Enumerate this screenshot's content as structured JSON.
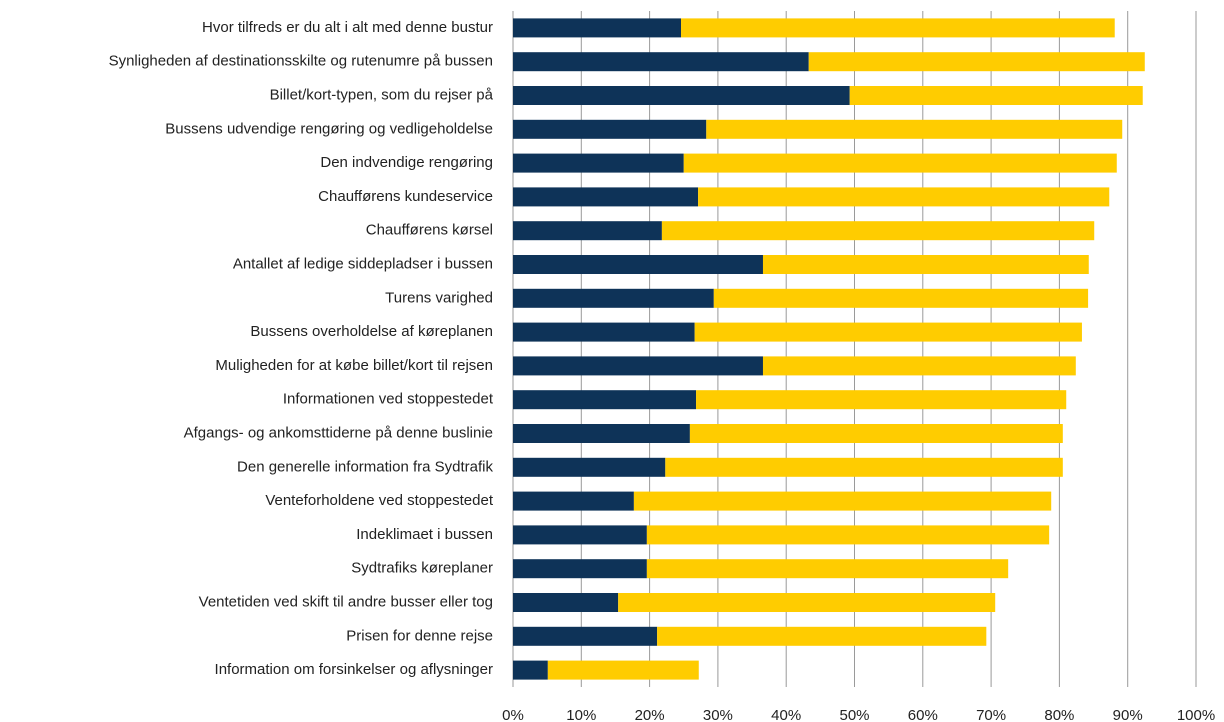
{
  "chart_data": {
    "type": "stacked_barh",
    "categories": [
      "Hvor tilfreds er du alt i alt med denne bustur",
      "Synligheden af destinationsskilte og rutenumre på bussen",
      "Billet/kort-typen, som du rejser på",
      "Bussens udvendige rengøring og vedligeholdelse",
      "Den indvendige rengøring",
      "Chaufførens kundeservice",
      "Chaufførens kørsel",
      "Antallet af ledige siddepladser i bussen",
      "Turens varighed",
      "Bussens overholdelse af køreplanen",
      "Muligheden for at købe billet/kort til rejsen",
      "Informationen ved stoppestedet",
      "Afgangs- og ankomsttiderne på denne buslinie",
      "Den generelle information fra Sydtrafik",
      "Venteforholdene ved stoppestedet",
      "Indeklimaet i bussen",
      "Sydtrafiks køreplaner",
      "Ventetiden ved skift til andre busser eller tog",
      "Prisen for denne rejse",
      "Information om forsinkelser og aflysninger"
    ],
    "series": [
      {
        "color": "#0e3358",
        "values": [
          24.6,
          43.3,
          49.3,
          28.3,
          25.0,
          27.1,
          21.8,
          36.6,
          29.4,
          26.6,
          36.6,
          26.8,
          25.9,
          22.3,
          17.7,
          19.6,
          19.6,
          15.4,
          21.1,
          5.1
        ]
      },
      {
        "color": "#ffcc00",
        "values": [
          63.5,
          49.2,
          42.9,
          60.9,
          63.4,
          60.2,
          63.3,
          47.7,
          54.8,
          56.7,
          45.8,
          54.2,
          54.6,
          58.2,
          61.1,
          58.9,
          52.9,
          55.2,
          48.2,
          22.1
        ]
      }
    ],
    "xlim": [
      0,
      100
    ],
    "xticks": [
      {
        "value": 0,
        "label": "0%"
      },
      {
        "value": 10,
        "label": "10%"
      },
      {
        "value": 20,
        "label": "20%"
      },
      {
        "value": 30,
        "label": "30%"
      },
      {
        "value": 40,
        "label": "40%"
      },
      {
        "value": 50,
        "label": "50%"
      },
      {
        "value": 60,
        "label": "60%"
      },
      {
        "value": 70,
        "label": "70%"
      },
      {
        "value": 80,
        "label": "80%"
      },
      {
        "value": 90,
        "label": "90%"
      },
      {
        "value": 100,
        "label": "100%"
      }
    ],
    "grid": true
  }
}
